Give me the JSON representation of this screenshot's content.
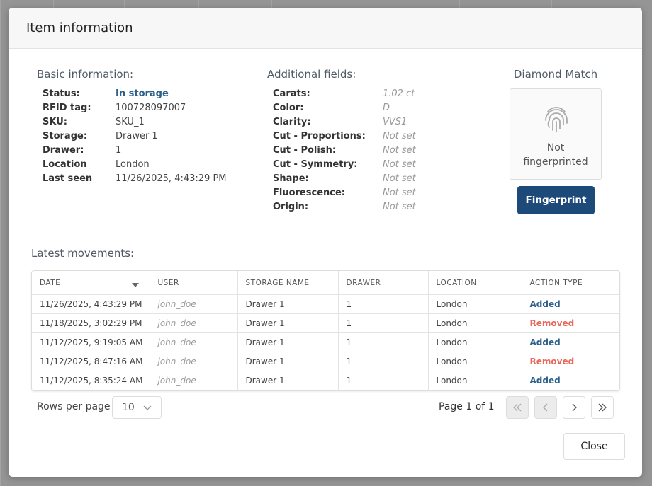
{
  "header": {
    "title": "Item information"
  },
  "basic": {
    "title": "Basic information:",
    "fields": [
      {
        "label": "Status:",
        "value": "In storage"
      },
      {
        "label": "RFID tag:",
        "value": "100728097007"
      },
      {
        "label": "SKU:",
        "value": "SKU_1"
      },
      {
        "label": "Storage:",
        "value": "Drawer 1"
      },
      {
        "label": "Drawer:",
        "value": "1"
      },
      {
        "label": "Location",
        "value": "London"
      },
      {
        "label": "Last seen",
        "value": "11/26/2025, 4:43:29 PM"
      }
    ]
  },
  "additional": {
    "title": "Additional fields:",
    "fields": [
      {
        "label": "Carats:",
        "value": "1.02 ct"
      },
      {
        "label": "Color:",
        "value": "D"
      },
      {
        "label": "Clarity:",
        "value": "VVS1"
      },
      {
        "label": "Cut - Proportions:",
        "value": "Not set"
      },
      {
        "label": "Cut - Polish:",
        "value": "Not set"
      },
      {
        "label": "Cut - Symmetry:",
        "value": "Not set"
      },
      {
        "label": "Shape:",
        "value": "Not set"
      },
      {
        "label": "Fluorescence:",
        "value": "Not set"
      },
      {
        "label": "Origin:",
        "value": "Not set"
      }
    ]
  },
  "diamond_match": {
    "title": "Diamond Match",
    "status": "Not fingerprinted",
    "button": "Fingerprint"
  },
  "movements": {
    "title": "Latest movements:",
    "columns": [
      "DATE",
      "USER",
      "STORAGE NAME",
      "DRAWER",
      "LOCATION",
      "ACTION TYPE"
    ],
    "rows": [
      [
        "11/26/2025, 4:43:29 PM",
        "john_doe",
        "Drawer 1",
        "1",
        "London",
        "Added"
      ],
      [
        "11/18/2025, 3:02:29 PM",
        "john_doe",
        "Drawer 1",
        "1",
        "London",
        "Removed"
      ],
      [
        "11/12/2025, 9:19:05 AM",
        "john_doe",
        "Drawer 1",
        "1",
        "London",
        "Added"
      ],
      [
        "11/12/2025, 8:47:16 AM",
        "john_doe",
        "Drawer 1",
        "1",
        "London",
        "Removed"
      ],
      [
        "11/12/2025, 8:35:24 AM",
        "john_doe",
        "Drawer 1",
        "1",
        "London",
        "Added"
      ]
    ],
    "action_colors": [
      "#2c5f8a",
      "#e8685a",
      "#2c5f8a",
      "#e8685a",
      "#2c5f8a"
    ]
  },
  "pagination": {
    "rows_per_page_label": "Rows per page",
    "rows_per_page": "10",
    "page_info": "Page 1 of 1"
  },
  "footer": {
    "close": "Close"
  }
}
